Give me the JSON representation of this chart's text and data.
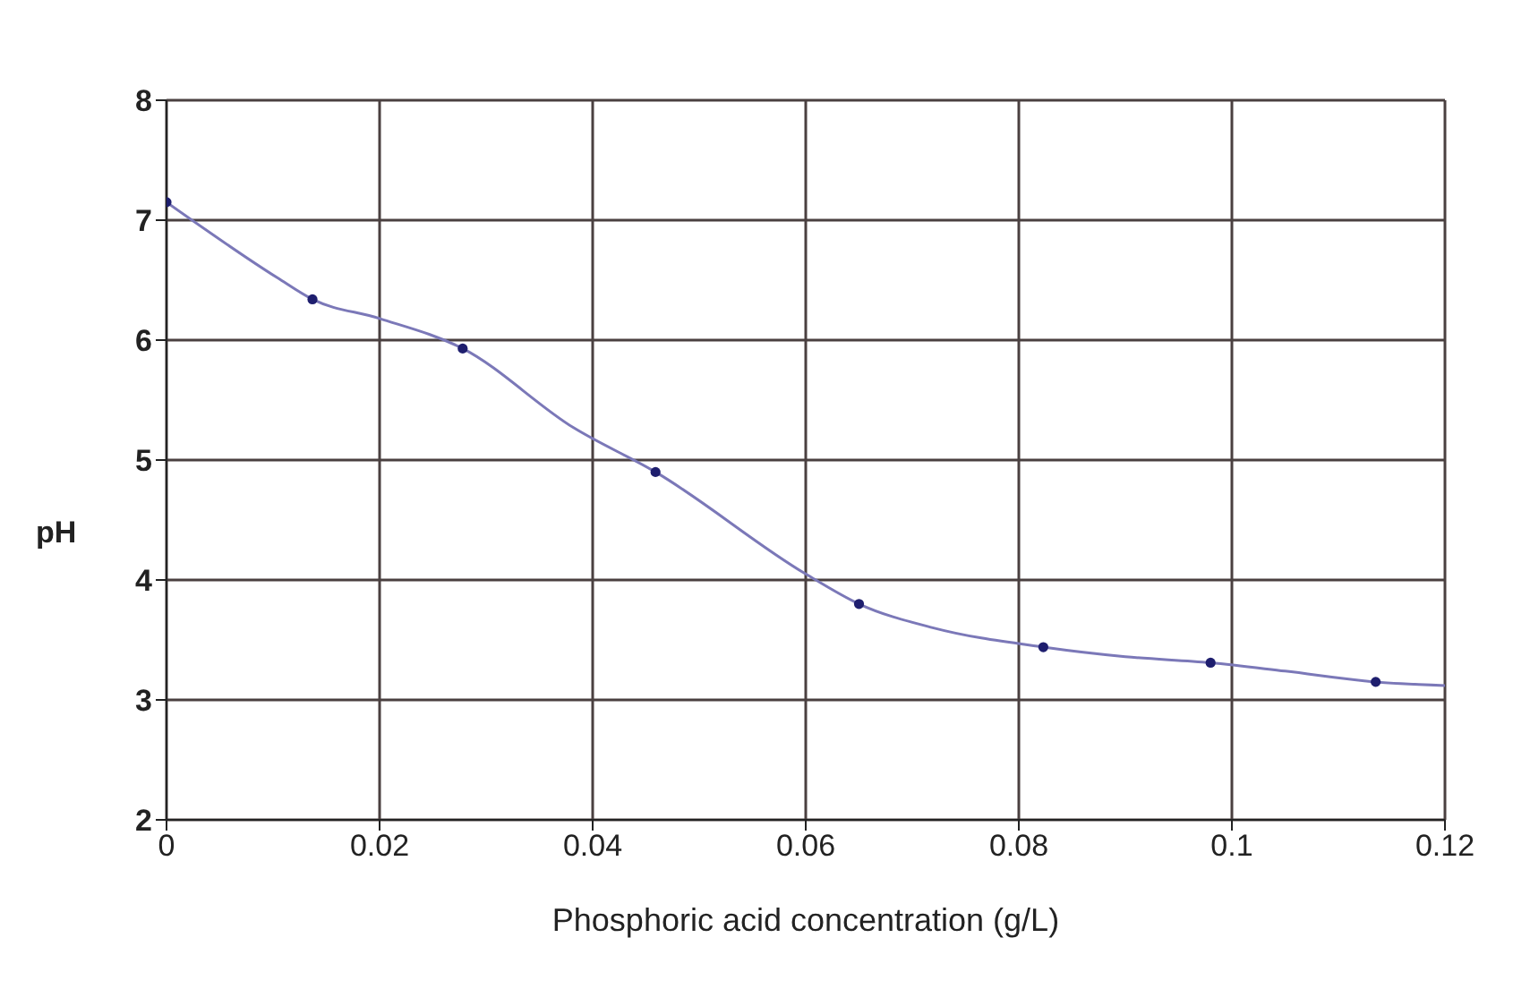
{
  "chart_data": {
    "type": "scatter",
    "xlabel": "Phosphoric acid concentration (g/L)",
    "ylabel": "pH",
    "xlim": [
      0,
      0.12
    ],
    "xticks": [
      0,
      0.02,
      0.04,
      0.06,
      0.08,
      0.1,
      0.12
    ],
    "ylim": [
      2,
      8
    ],
    "yticks": [
      2,
      3,
      4,
      5,
      6,
      7,
      8
    ],
    "grid": true,
    "series": [
      {
        "type": "line",
        "color": "#7b78b8",
        "marker": "none",
        "x": [
          0,
          0.0104,
          0.0137,
          0.02,
          0.0278,
          0.0382,
          0.0459,
          0.06,
          0.065,
          0.072,
          0.0823,
          0.09,
          0.098,
          0.105,
          0.1135,
          0.12
        ],
        "values": [
          7.15,
          6.52,
          6.34,
          6.18,
          5.93,
          5.27,
          4.9,
          4.05,
          3.8,
          3.6,
          3.44,
          3.36,
          3.31,
          3.24,
          3.15,
          3.12
        ]
      },
      {
        "color": "#1e1e6e",
        "marker": "circle",
        "x": [
          0,
          0.0137,
          0.0278,
          0.0459,
          0.065,
          0.0823,
          0.098,
          0.1135
        ],
        "values": [
          7.15,
          6.34,
          5.93,
          4.9,
          3.8,
          3.44,
          3.31,
          3.15
        ]
      }
    ]
  }
}
